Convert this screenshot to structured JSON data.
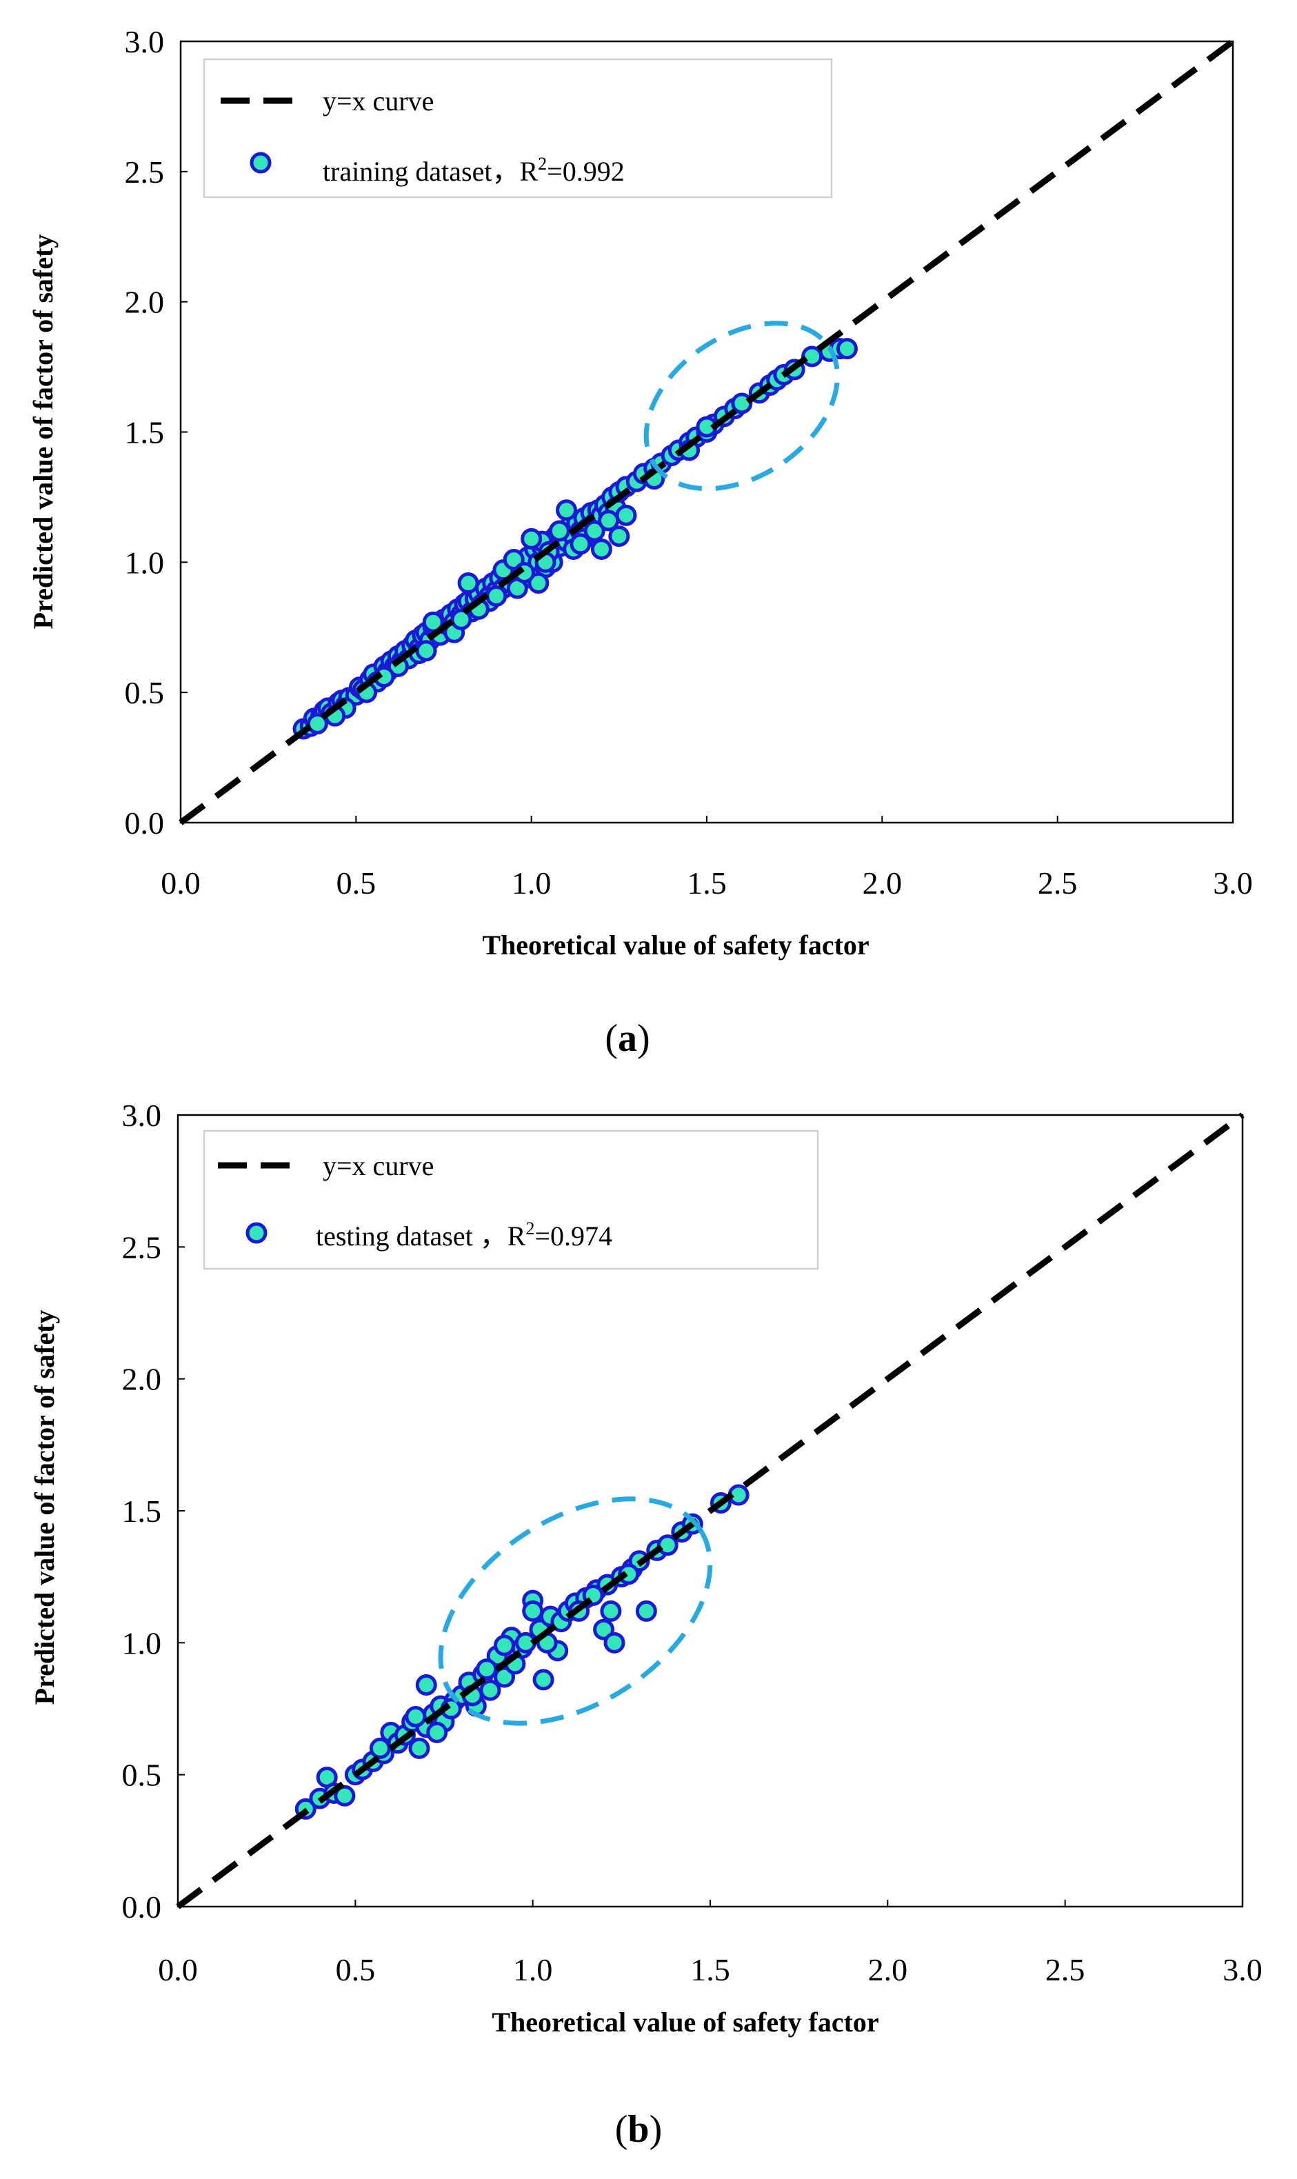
{
  "colors": {
    "point_fill": "#33e6b8",
    "point_stroke": "#1a1ad6",
    "highlight": "#29a9e1",
    "line": "#000000"
  },
  "chart_data": [
    {
      "type": "scatter",
      "panel_label_open": "(",
      "panel_label_letter": "a",
      "panel_label_close": ")",
      "xlabel": "Theoretical value of safety factor",
      "ylabel": "Predicted value of factor of safety",
      "xlim": [
        0.0,
        3.0
      ],
      "ylim": [
        0.0,
        3.0
      ],
      "xticks": [
        "0.0",
        "0.5",
        "1.0",
        "1.5",
        "2.0",
        "2.5",
        "3.0"
      ],
      "yticks": [
        "0.0",
        "0.5",
        "1.0",
        "1.5",
        "2.0",
        "2.5",
        "3.0"
      ],
      "legend": {
        "position": "top-left",
        "line_label": "y=x curve",
        "series_label_prefix": "training dataset，R",
        "series_label_sup": "2",
        "series_label_suffix": "=0.992"
      },
      "reference_line": {
        "name": "y=x curve",
        "x": [
          0.0,
          3.0
        ],
        "y": [
          0.0,
          3.0
        ]
      },
      "highlight_ellipse": {
        "cx": 1.6,
        "cy": 1.6,
        "rx": 0.3,
        "ry": 0.2,
        "angle_deg": 34
      },
      "series": [
        {
          "name": "training dataset",
          "x": [
            0.35,
            0.37,
            0.38,
            0.4,
            0.41,
            0.42,
            0.43,
            0.45,
            0.46,
            0.47,
            0.48,
            0.5,
            0.51,
            0.52,
            0.54,
            0.55,
            0.56,
            0.58,
            0.59,
            0.6,
            0.61,
            0.62,
            0.63,
            0.64,
            0.65,
            0.66,
            0.67,
            0.68,
            0.69,
            0.7,
            0.71,
            0.72,
            0.73,
            0.74,
            0.75,
            0.76,
            0.77,
            0.78,
            0.79,
            0.8,
            0.81,
            0.82,
            0.83,
            0.84,
            0.85,
            0.86,
            0.87,
            0.88,
            0.89,
            0.9,
            0.91,
            0.92,
            0.93,
            0.94,
            0.95,
            0.96,
            0.97,
            0.98,
            0.99,
            1.0,
            1.01,
            1.02,
            1.03,
            1.04,
            1.05,
            1.06,
            1.07,
            1.08,
            1.09,
            1.1,
            1.11,
            1.12,
            1.13,
            1.14,
            1.15,
            1.16,
            1.17,
            1.18,
            1.19,
            1.2,
            1.21,
            1.22,
            1.23,
            1.24,
            1.25,
            1.27,
            1.3,
            1.32,
            1.35,
            1.37,
            1.4,
            1.42,
            1.45,
            1.47,
            1.5,
            1.52,
            1.55,
            1.58,
            1.6,
            1.65,
            1.68,
            1.7,
            1.72,
            1.75,
            1.8,
            1.85,
            1.88,
            1.9,
            0.47,
            0.62,
            0.72,
            0.82,
            0.88,
            0.92,
            0.96,
            1.0,
            1.03,
            1.06,
            1.1,
            1.15,
            1.2,
            1.25,
            1.0,
            0.95,
            1.02,
            1.08,
            1.12,
            0.85,
            0.78,
            0.68,
            0.58,
            0.53,
            0.44,
            0.39,
            1.05,
            1.18,
            1.22,
            1.45,
            1.5,
            0.9,
            0.8,
            0.7,
            0.98,
            1.04,
            1.14,
            1.27,
            1.35
          ],
          "y": [
            0.36,
            0.37,
            0.4,
            0.41,
            0.43,
            0.44,
            0.42,
            0.46,
            0.47,
            0.45,
            0.48,
            0.49,
            0.52,
            0.51,
            0.55,
            0.57,
            0.54,
            0.6,
            0.58,
            0.62,
            0.6,
            0.64,
            0.62,
            0.66,
            0.63,
            0.68,
            0.7,
            0.67,
            0.72,
            0.73,
            0.7,
            0.75,
            0.74,
            0.72,
            0.78,
            0.76,
            0.8,
            0.77,
            0.82,
            0.8,
            0.84,
            0.85,
            0.81,
            0.86,
            0.88,
            0.84,
            0.9,
            0.87,
            0.92,
            0.89,
            0.94,
            0.9,
            0.96,
            0.92,
            0.98,
            0.95,
            1.0,
            0.97,
            1.02,
            0.95,
            1.05,
            1.0,
            1.06,
            0.98,
            1.08,
            1.04,
            1.1,
            1.06,
            1.12,
            1.08,
            1.14,
            1.1,
            1.15,
            1.12,
            1.17,
            1.13,
            1.19,
            1.15,
            1.2,
            1.18,
            1.22,
            1.19,
            1.25,
            1.21,
            1.27,
            1.29,
            1.31,
            1.34,
            1.36,
            1.38,
            1.41,
            1.43,
            1.46,
            1.48,
            1.5,
            1.53,
            1.56,
            1.59,
            1.61,
            1.65,
            1.68,
            1.7,
            1.72,
            1.74,
            1.79,
            1.81,
            1.82,
            1.82,
            0.44,
            0.6,
            0.77,
            0.92,
            0.85,
            0.97,
            0.9,
            0.94,
            1.08,
            1.0,
            1.2,
            1.09,
            1.05,
            1.1,
            1.09,
            1.01,
            0.92,
            1.12,
            1.05,
            0.82,
            0.73,
            0.65,
            0.56,
            0.5,
            0.41,
            0.38,
            1.04,
            1.12,
            1.16,
            1.43,
            1.52,
            0.87,
            0.78,
            0.66,
            0.96,
            1.0,
            1.07,
            1.18,
            1.32
          ]
        }
      ]
    },
    {
      "type": "scatter",
      "panel_label_open": "(",
      "panel_label_letter": "b",
      "panel_label_close": ")",
      "xlabel": "Theoretical value of safety factor",
      "ylabel": "Predicted value of factor of safety",
      "xlim": [
        0.0,
        3.0
      ],
      "ylim": [
        0.0,
        3.0
      ],
      "xticks": [
        "0.0",
        "0.5",
        "1.0",
        "1.5",
        "2.0",
        "2.5",
        "3.0"
      ],
      "yticks": [
        "0.0",
        "0.5",
        "1.0",
        "1.5",
        "2.0",
        "2.5",
        "3.0"
      ],
      "legend": {
        "position": "top-left",
        "line_label": "y=x curve",
        "series_label_prefix": "testing dataset ，R",
        "series_label_sup": "2",
        "series_label_suffix": "=0.974"
      },
      "reference_line": {
        "name": "y=x curve",
        "x": [
          0.0,
          3.0
        ],
        "y": [
          0.0,
          3.0
        ]
      },
      "highlight_ellipse": {
        "cx": 1.12,
        "cy": 1.12,
        "rx": 0.42,
        "ry": 0.26,
        "angle_deg": 33
      },
      "series": [
        {
          "name": "testing dataset",
          "x": [
            0.36,
            0.4,
            0.42,
            0.44,
            0.47,
            0.5,
            0.52,
            0.55,
            0.58,
            0.6,
            0.62,
            0.64,
            0.66,
            0.68,
            0.7,
            0.7,
            0.72,
            0.74,
            0.75,
            0.78,
            0.8,
            0.82,
            0.84,
            0.86,
            0.88,
            0.9,
            0.92,
            0.94,
            0.95,
            0.97,
            1.0,
            1.0,
            1.02,
            1.03,
            1.05,
            1.07,
            1.08,
            1.1,
            1.12,
            1.15,
            1.18,
            1.2,
            1.21,
            1.22,
            1.23,
            1.25,
            1.28,
            1.3,
            1.32,
            1.35,
            1.38,
            1.42,
            1.45,
            1.53,
            1.58,
            0.57,
            0.67,
            0.77,
            0.87,
            0.92,
            0.98,
            1.04,
            1.13,
            1.17,
            1.27,
            0.83,
            0.73
          ],
          "y": [
            0.37,
            0.41,
            0.49,
            0.43,
            0.42,
            0.5,
            0.52,
            0.55,
            0.58,
            0.66,
            0.62,
            0.65,
            0.7,
            0.6,
            0.84,
            0.68,
            0.73,
            0.76,
            0.7,
            0.78,
            0.8,
            0.85,
            0.76,
            0.88,
            0.82,
            0.95,
            0.87,
            1.02,
            0.92,
            0.98,
            1.16,
            1.12,
            1.05,
            0.86,
            1.1,
            0.97,
            1.08,
            1.12,
            1.15,
            1.17,
            1.2,
            1.05,
            1.22,
            1.12,
            1.0,
            1.25,
            1.28,
            1.31,
            1.12,
            1.35,
            1.37,
            1.42,
            1.45,
            1.53,
            1.56,
            0.6,
            0.72,
            0.75,
            0.9,
            0.99,
            1.0,
            1.0,
            1.12,
            1.18,
            1.26,
            0.8,
            0.66
          ]
        }
      ]
    }
  ]
}
